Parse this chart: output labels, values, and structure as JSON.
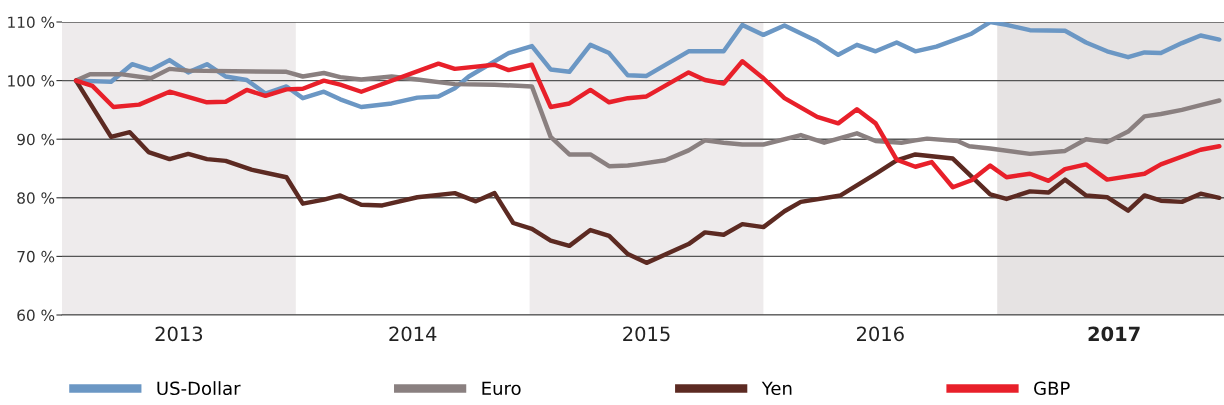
{
  "chart_data": {
    "type": "line",
    "ylim": [
      60,
      110
    ],
    "yticks": [
      {
        "value": 60,
        "label": "60 %"
      },
      {
        "value": 70,
        "label": "70 %"
      },
      {
        "value": 80,
        "label": "80 %"
      },
      {
        "value": 90,
        "label": "90 %"
      },
      {
        "value": 100,
        "label": "100 %"
      },
      {
        "value": 110,
        "label": "110 %"
      }
    ],
    "xlim": [
      2013,
      2017.97
    ],
    "xticks": [
      {
        "value": 2013.5,
        "label": "2013"
      },
      {
        "value": 2014.5,
        "label": "2014"
      },
      {
        "value": 2015.5,
        "label": "2015"
      },
      {
        "value": 2016.5,
        "label": "2016"
      },
      {
        "value": 2017.5,
        "label": "2017"
      }
    ],
    "grid": "y",
    "legend": "bottom",
    "marker": "none",
    "line_style": "solid",
    "bands": [
      {
        "axis": "x",
        "from": 2013,
        "to": 2014,
        "color": "#eeebec"
      },
      {
        "axis": "x",
        "from": 2015,
        "to": 2016,
        "color": "#eeebec"
      },
      {
        "axis": "x",
        "from": 2017,
        "to": 2017.97,
        "color": "#e6e3e3"
      }
    ],
    "series": [
      {
        "name": "US-Dollar",
        "color": "#6b97c4",
        "x": [
          2013.06,
          2013.21,
          2013.3,
          2013.38,
          2013.46,
          2013.54,
          2013.62,
          2013.7,
          2013.79,
          2013.87,
          2013.96,
          2014.03,
          2014.12,
          2014.19,
          2014.28,
          2014.41,
          2014.52,
          2014.61,
          2014.68,
          2014.74,
          2014.91,
          2015.01,
          2015.09,
          2015.17,
          2015.26,
          2015.34,
          2015.42,
          2015.5,
          2015.68,
          2015.83,
          2015.91,
          2016.0,
          2016.09,
          2016.23,
          2016.32,
          2016.4,
          2016.48,
          2016.57,
          2016.65,
          2016.74,
          2016.89,
          2016.97,
          2017.04,
          2017.14,
          2017.29,
          2017.38,
          2017.47,
          2017.56,
          2017.63,
          2017.7,
          2017.79,
          2017.87,
          2017.95
        ],
        "values": [
          100,
          99.8,
          102.8,
          101.8,
          103.5,
          101.4,
          102.8,
          100.7,
          100.1,
          97.8,
          99,
          97,
          98.1,
          96.8,
          95.5,
          96.1,
          97.1,
          97.3,
          98.7,
          100.7,
          104.7,
          105.9,
          101.9,
          101.5,
          106.1,
          104.7,
          100.9,
          100.8,
          105,
          105,
          109.5,
          107.8,
          109.4,
          106.7,
          104.4,
          106.1,
          105,
          106.5,
          105,
          105.8,
          108,
          110,
          109.5,
          108.6,
          108.5,
          106.5,
          105,
          104,
          104.8,
          104.7,
          106.4,
          107.7,
          107
        ]
      },
      {
        "name": "Euro",
        "color": "#8a8080",
        "x": [
          2013.06,
          2013.12,
          2013.25,
          2013.38,
          2013.46,
          2013.54,
          2013.96,
          2014.03,
          2014.12,
          2014.19,
          2014.28,
          2014.41,
          2014.52,
          2014.68,
          2014.85,
          2015.01,
          2015.09,
          2015.17,
          2015.26,
          2015.34,
          2015.42,
          2015.46,
          2015.58,
          2015.68,
          2015.75,
          2015.83,
          2015.91,
          2016.0,
          2016.16,
          2016.26,
          2016.4,
          2016.48,
          2016.59,
          2016.65,
          2016.7,
          2016.83,
          2016.88,
          2016.97,
          2017.14,
          2017.29,
          2017.38,
          2017.47,
          2017.56,
          2017.63,
          2017.7,
          2017.79,
          2017.87,
          2017.95
        ],
        "values": [
          100,
          101.1,
          101.1,
          100.4,
          102,
          101.7,
          101.5,
          100.7,
          101.3,
          100.6,
          100.2,
          100.7,
          100.2,
          99.4,
          99.3,
          99,
          90.4,
          87.4,
          87.4,
          85.4,
          85.5,
          85.7,
          86.4,
          88.1,
          89.8,
          89.4,
          89.1,
          89.1,
          90.7,
          89.4,
          91,
          89.7,
          89.4,
          89.8,
          90.1,
          89.7,
          88.8,
          88.4,
          87.5,
          88,
          90,
          89.5,
          91.3,
          93.9,
          94.3,
          95,
          95.8,
          96.6
        ]
      },
      {
        "name": "Yen",
        "color": "#5c2a22",
        "x": [
          2013.06,
          2013.21,
          2013.29,
          2013.37,
          2013.46,
          2013.54,
          2013.62,
          2013.7,
          2013.81,
          2013.96,
          2014.03,
          2014.12,
          2014.19,
          2014.28,
          2014.37,
          2014.52,
          2014.68,
          2014.77,
          2014.85,
          2014.93,
          2015.01,
          2015.09,
          2015.17,
          2015.26,
          2015.34,
          2015.42,
          2015.5,
          2015.68,
          2015.75,
          2015.83,
          2015.91,
          2016.0,
          2016.09,
          2016.16,
          2016.33,
          2016.48,
          2016.57,
          2016.65,
          2016.81,
          2016.97,
          2017.04,
          2017.14,
          2017.22,
          2017.29,
          2017.38,
          2017.47,
          2017.56,
          2017.63,
          2017.7,
          2017.79,
          2017.87,
          2017.95
        ],
        "values": [
          100,
          90.4,
          91.2,
          87.8,
          86.6,
          87.5,
          86.6,
          86.3,
          84.8,
          83.5,
          79,
          79.7,
          80.4,
          78.8,
          78.7,
          80.1,
          80.8,
          79.4,
          80.8,
          75.7,
          74.7,
          72.7,
          71.8,
          74.5,
          73.5,
          70.4,
          68.9,
          72.1,
          74.1,
          73.7,
          75.5,
          75,
          77.7,
          79.3,
          80.4,
          84.1,
          86.4,
          87.4,
          86.7,
          80.6,
          79.8,
          81.1,
          80.9,
          83.1,
          80.4,
          80.1,
          77.8,
          80.4,
          79.5,
          79.3,
          80.7,
          80
        ]
      },
      {
        "name": "GBP",
        "color": "#e8202a",
        "x": [
          2013.06,
          2013.13,
          2013.22,
          2013.33,
          2013.46,
          2013.62,
          2013.7,
          2013.79,
          2013.87,
          2013.96,
          2014.03,
          2014.12,
          2014.19,
          2014.28,
          2014.61,
          2014.68,
          2014.85,
          2014.91,
          2015.01,
          2015.09,
          2015.17,
          2015.26,
          2015.34,
          2015.42,
          2015.5,
          2015.68,
          2015.75,
          2015.83,
          2015.91,
          2016.0,
          2016.09,
          2016.23,
          2016.32,
          2016.4,
          2016.48,
          2016.57,
          2016.65,
          2016.72,
          2016.81,
          2016.89,
          2016.97,
          2017.04,
          2017.14,
          2017.22,
          2017.29,
          2017.38,
          2017.47,
          2017.63,
          2017.7,
          2017.87,
          2017.95
        ],
        "values": [
          100,
          99.1,
          95.5,
          95.9,
          98.1,
          96.3,
          96.4,
          98.4,
          97.4,
          98.5,
          98.6,
          100,
          99.3,
          98.1,
          102.9,
          102,
          102.7,
          101.8,
          102.7,
          95.5,
          96.1,
          98.4,
          96.3,
          97,
          97.3,
          101.4,
          100.1,
          99.5,
          103.3,
          100.4,
          97,
          93.8,
          92.7,
          95.1,
          92.7,
          86.5,
          85.3,
          86.1,
          81.8,
          83,
          85.5,
          83.5,
          84.1,
          82.9,
          84.9,
          85.7,
          83.1,
          84.1,
          85.7,
          88.2,
          88.8
        ]
      }
    ]
  }
}
